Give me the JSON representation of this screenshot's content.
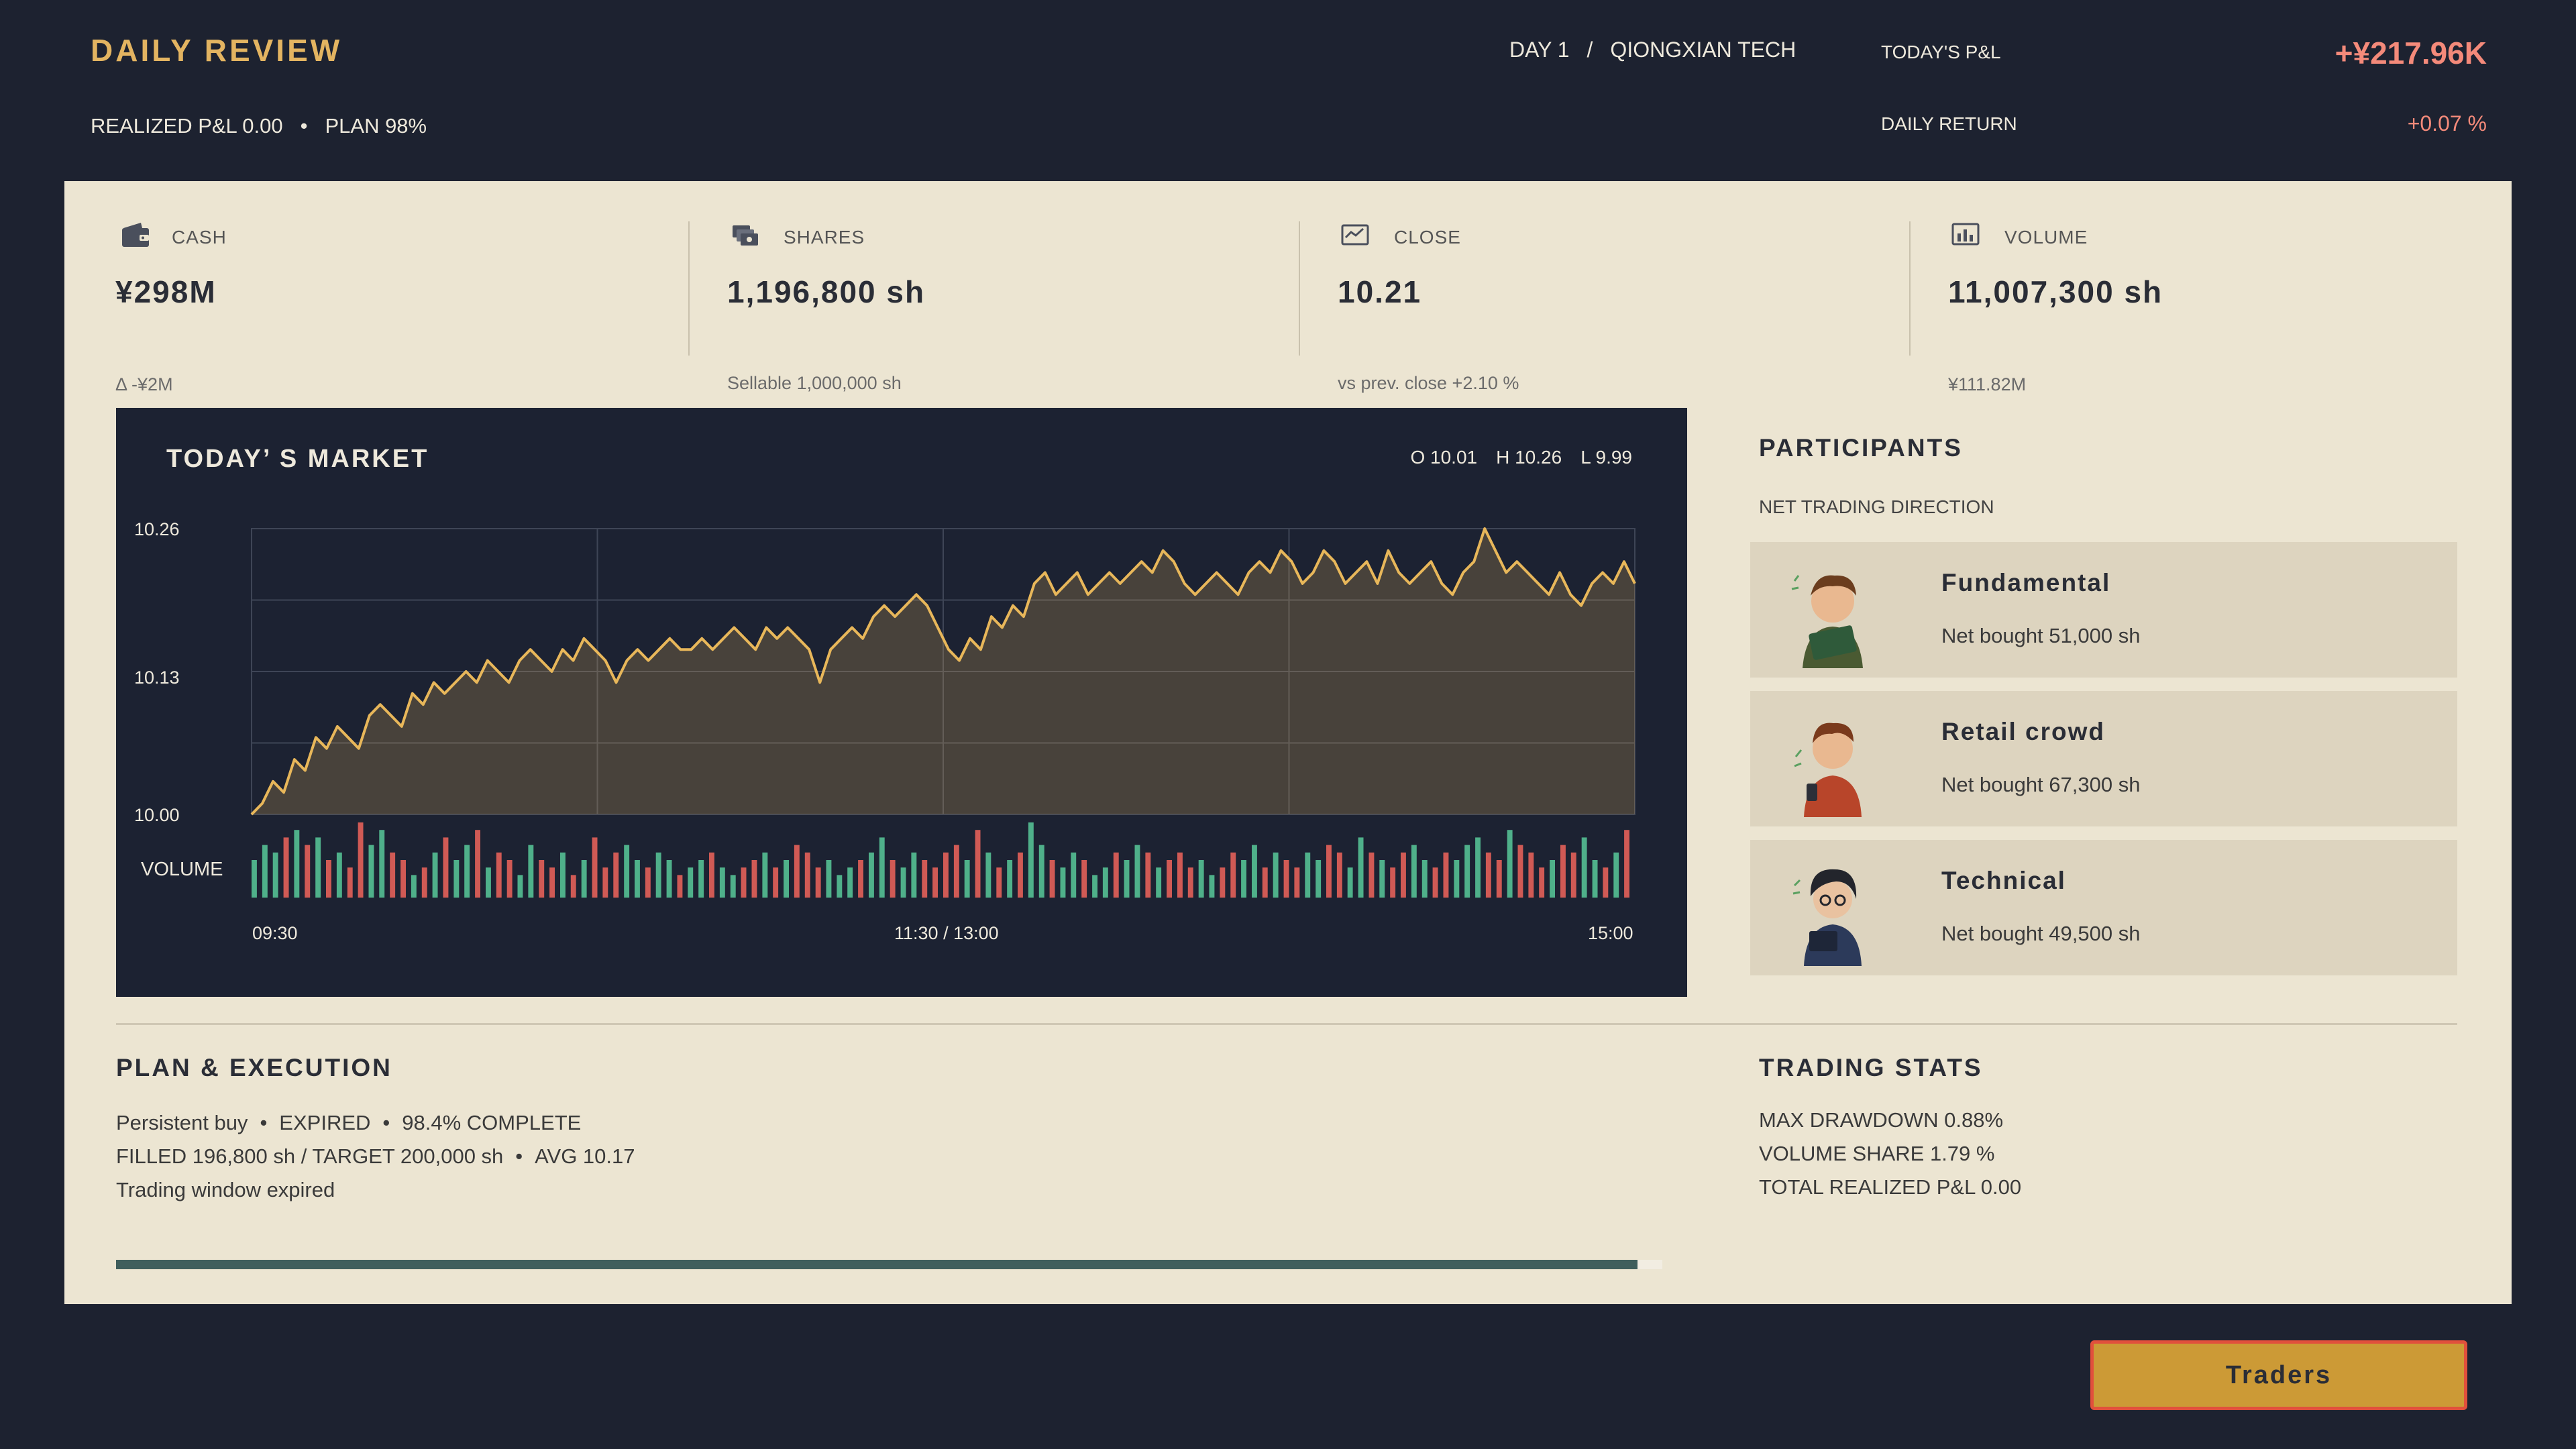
{
  "header": {
    "title": "DAILY REVIEW",
    "realized": "REALIZED P&L 0.00",
    "plan": "PLAN 98%",
    "day": "DAY 1",
    "company": "QIONGXIAN TECH",
    "pnl_label": "TODAY'S P&L",
    "pnl_value": "+¥217.96K",
    "return_label": "DAILY RETURN",
    "return_value": "+0.07 %"
  },
  "cards": [
    {
      "icon": "wallet-icon",
      "label": "CASH",
      "value": "¥298M",
      "sub": "Δ -¥2M"
    },
    {
      "icon": "shares-icon",
      "label": "SHARES",
      "value": "1,196,800 sh",
      "sub": "Sellable 1,000,000 sh"
    },
    {
      "icon": "close-price-icon",
      "label": "CLOSE",
      "value": "10.21",
      "sub": "vs prev. close +2.10 %"
    },
    {
      "icon": "volume-icon",
      "label": "VOLUME",
      "value": "11,007,300 sh",
      "sub": "¥111.82M"
    }
  ],
  "market": {
    "title": "TODAY’ S MARKET",
    "open": "O 10.01",
    "high": "H 10.26",
    "low": "L 9.99",
    "volume_label": "VOLUME"
  },
  "chart_data": {
    "type": "line",
    "title": "TODAY’ S MARKET",
    "y_ticks": [
      "10.26",
      "10.13",
      "10.00"
    ],
    "ylim": [
      10.0,
      10.26
    ],
    "x_ticks": [
      "09:30",
      "11:30 / 13:00",
      "15:00"
    ],
    "series": [
      {
        "values": [
          10.0,
          10.01,
          10.03,
          10.02,
          10.05,
          10.04,
          10.07,
          10.06,
          10.08,
          10.07,
          10.06,
          10.09,
          10.1,
          10.09,
          10.08,
          10.11,
          10.1,
          10.12,
          10.11,
          10.12,
          10.13,
          10.12,
          10.14,
          10.13,
          10.12,
          10.14,
          10.15,
          10.14,
          10.13,
          10.15,
          10.14,
          10.16,
          10.15,
          10.14,
          10.12,
          10.14,
          10.15,
          10.14,
          10.15,
          10.16,
          10.15,
          10.15,
          10.16,
          10.15,
          10.16,
          10.17,
          10.16,
          10.15,
          10.17,
          10.16,
          10.17,
          10.16,
          10.15,
          10.12,
          10.15,
          10.16,
          10.17,
          10.16,
          10.18,
          10.19,
          10.18,
          10.19,
          10.2,
          10.19,
          10.17,
          10.15,
          10.14,
          10.16,
          10.15,
          10.18,
          10.17,
          10.19,
          10.18,
          10.21,
          10.22,
          10.2,
          10.21,
          10.22,
          10.2,
          10.21,
          10.22,
          10.21,
          10.22,
          10.23,
          10.22,
          10.24,
          10.23,
          10.21,
          10.2,
          10.21,
          10.22,
          10.21,
          10.2,
          10.22,
          10.23,
          10.22,
          10.24,
          10.23,
          10.21,
          10.22,
          10.24,
          10.23,
          10.21,
          10.22,
          10.23,
          10.21,
          10.24,
          10.22,
          10.21,
          10.22,
          10.23,
          10.21,
          10.2,
          10.22,
          10.23,
          10.26,
          10.24,
          10.22,
          10.23,
          10.22,
          10.21,
          10.2,
          10.22,
          10.2,
          10.19,
          10.21,
          10.22,
          10.21,
          10.23,
          10.21
        ],
        "color": "#e8b75a"
      }
    ],
    "volume": [
      5,
      7,
      6,
      8,
      9,
      7,
      8,
      5,
      6,
      4,
      10,
      7,
      9,
      6,
      5,
      3,
      4,
      6,
      8,
      5,
      7,
      9,
      4,
      6,
      5,
      3,
      7,
      5,
      4,
      6,
      3,
      5,
      8,
      4,
      6,
      7,
      5,
      4,
      6,
      5,
      3,
      4,
      5,
      6,
      4,
      3,
      4,
      5,
      6,
      4,
      5,
      7,
      6,
      4,
      5,
      3,
      4,
      5,
      6,
      8,
      5,
      4,
      6,
      5,
      4,
      6,
      7,
      5,
      9,
      6,
      4,
      5,
      6,
      10,
      7,
      5,
      4,
      6,
      5,
      3,
      4,
      6,
      5,
      7,
      6,
      4,
      5,
      6,
      4,
      5,
      3,
      4,
      6,
      5,
      7,
      4,
      6,
      5,
      4,
      6,
      5,
      7,
      6,
      4,
      8,
      6,
      5,
      4,
      6,
      7,
      5,
      4,
      6,
      5,
      7,
      8,
      6,
      5,
      9,
      7,
      6,
      4,
      5,
      7,
      6,
      8,
      5,
      4,
      6,
      9
    ],
    "up_color": "#4fb08a",
    "down_color": "#d05a55"
  },
  "participants": {
    "title": "PARTICIPANTS",
    "subtitle": "NET TRADING DIRECTION",
    "items": [
      {
        "name": "Fundamental",
        "net": "Net bought  51,000 sh"
      },
      {
        "name": "Retail crowd",
        "net": "Net bought  67,300 sh"
      },
      {
        "name": "Technical",
        "net": "Net bought  49,500 sh"
      }
    ]
  },
  "plan": {
    "title": "PLAN & EXECUTION",
    "kind": "Persistent buy",
    "status": "EXPIRED",
    "complete": "98.4% COMPLETE",
    "filled": "FILLED 196,800 sh / TARGET 200,000 sh",
    "avg": "AVG 10.17",
    "note": "Trading window expired",
    "progress": 0.984
  },
  "stats": {
    "title": "TRADING STATS",
    "drawdown": "MAX DRAWDOWN 0.88%",
    "volume_share": "VOLUME SHARE 1.79 %",
    "total_pnl": "TOTAL REALIZED P&L 0.00"
  },
  "footer": {
    "traders_label": "Traders"
  }
}
